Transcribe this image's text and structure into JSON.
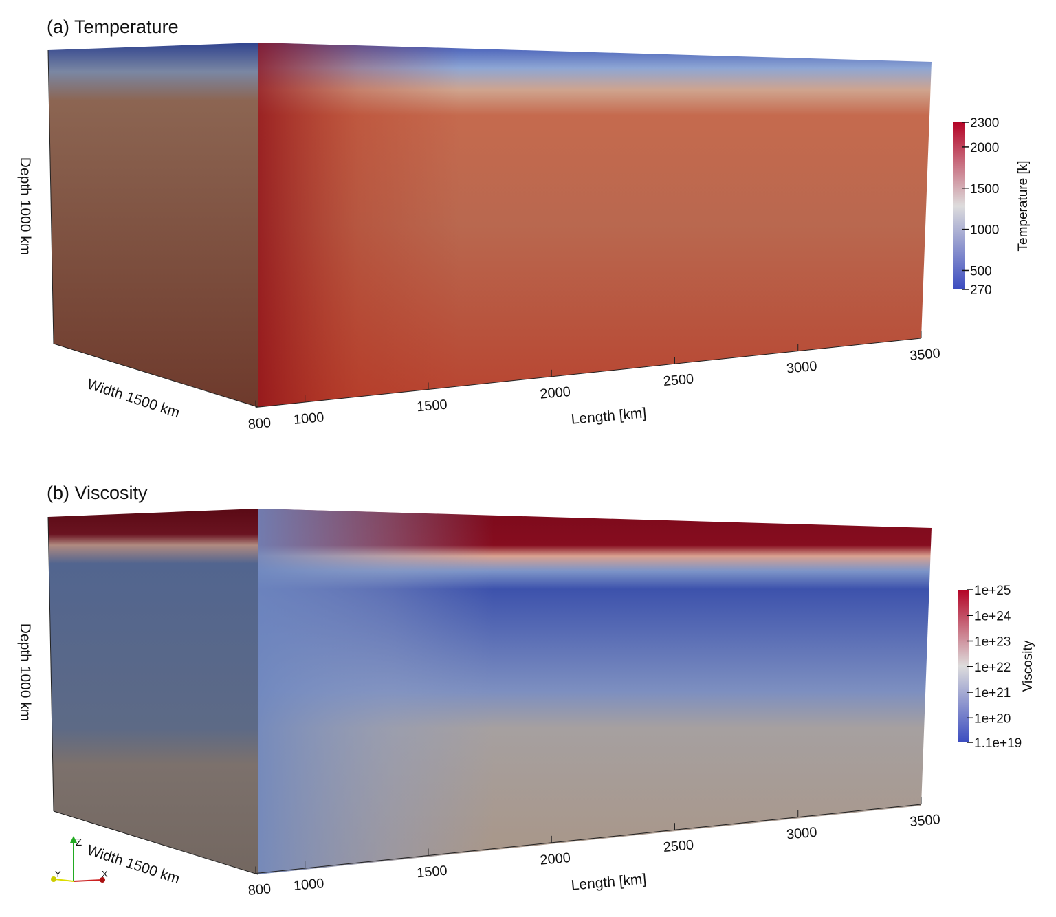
{
  "panels": [
    {
      "title": "(a) Temperature",
      "depth_label": "Depth 1000 km",
      "width_label": "Width 1500 km",
      "length_label": "Length [km]",
      "length_lim": [
        800,
        3500
      ],
      "length_ticks": [
        800,
        1000,
        1500,
        2000,
        2500,
        3000,
        3500
      ],
      "colorbar": {
        "label": "Temperature [k]",
        "log": false,
        "lim": [
          270,
          2300
        ],
        "ticks": [
          270,
          500,
          1000,
          1500,
          2000,
          2300
        ]
      }
    },
    {
      "title": "(b) Viscosity",
      "depth_label": "Depth 1000 km",
      "width_label": "Width 1500 km",
      "length_label": "Length [km]",
      "length_lim": [
        800,
        3500
      ],
      "length_ticks": [
        800,
        1000,
        1500,
        2000,
        2500,
        3000,
        3500
      ],
      "colorbar": {
        "label": "Viscosity",
        "log": true,
        "lim": [
          1.1e+19,
          1e+25
        ],
        "ticks": [
          {
            "value": 1.1e+19,
            "label": "1.1e+19"
          },
          {
            "value": 1e+20,
            "label": "1e+20"
          },
          {
            "value": 1e+21,
            "label": "1e+21"
          },
          {
            "value": 1e+22,
            "label": "1e+22"
          },
          {
            "value": 1e+23,
            "label": "1e+23"
          },
          {
            "value": 1e+24,
            "label": "1e+24"
          },
          {
            "value": 1e+25,
            "label": "1e+25"
          }
        ]
      }
    }
  ],
  "triad": {
    "z": "Z",
    "y": "Y",
    "x": "X"
  }
}
